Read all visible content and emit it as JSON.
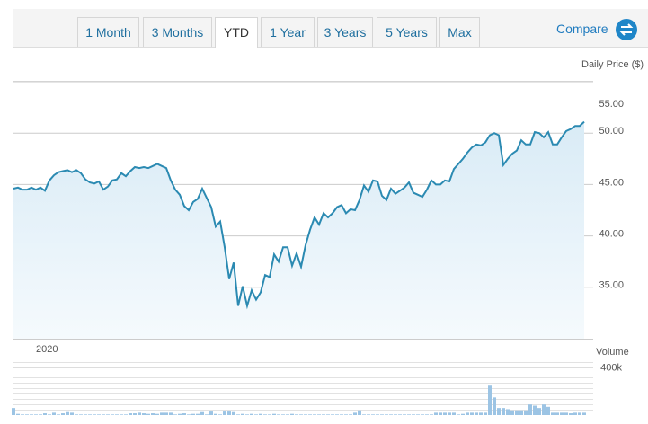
{
  "tabs": [
    "1 Month",
    "3 Months",
    "YTD",
    "1 Year",
    "3 Years",
    "5 Years",
    "Max"
  ],
  "active_tab": 2,
  "compare": "Compare",
  "chart_data": [
    {
      "type": "area",
      "y_label": "Daily Price ($)",
      "x_label": "2020",
      "color": "#2b8ab2",
      "ylim": [
        30,
        55
      ],
      "yticks": [
        {
          "value": 35,
          "label": "35.00"
        },
        {
          "value": 40,
          "label": "40.00"
        },
        {
          "value": 45,
          "label": "45.00"
        },
        {
          "value": 50,
          "label": "50.00"
        },
        {
          "value": 55,
          "label": "55.00"
        }
      ],
      "grid": true,
      "values": [
        44.6,
        44.7,
        44.5,
        44.5,
        44.7,
        44.5,
        44.7,
        44.4,
        45.4,
        45.9,
        46.2,
        46.3,
        46.4,
        46.2,
        46.4,
        46.1,
        45.5,
        45.2,
        45.1,
        45.3,
        44.5,
        44.8,
        45.4,
        45.5,
        46.1,
        45.8,
        46.3,
        46.7,
        46.6,
        46.7,
        46.6,
        46.8,
        47.0,
        46.8,
        46.6,
        45.4,
        44.5,
        44.0,
        42.9,
        42.5,
        43.3,
        43.6,
        44.6,
        43.7,
        42.8,
        40.9,
        41.4,
        38.9,
        35.8,
        37.4,
        33.2,
        35.1,
        33.2,
        34.7,
        33.8,
        34.5,
        36.2,
        36.0,
        38.2,
        37.5,
        38.9,
        38.9,
        37.1,
        38.3,
        37.0,
        39.1,
        40.6,
        41.8,
        41.1,
        42.2,
        41.8,
        42.2,
        42.8,
        43.0,
        42.2,
        42.6,
        42.5,
        43.5,
        44.9,
        44.3,
        45.4,
        45.3,
        43.9,
        43.5,
        44.6,
        44.1,
        44.4,
        44.7,
        45.2,
        44.2,
        44.0,
        43.8,
        44.5,
        45.4,
        45.0,
        45.0,
        45.4,
        45.3,
        46.5,
        47.0,
        47.5,
        48.1,
        48.6,
        48.9,
        48.8,
        49.1,
        49.8,
        50.0,
        49.8,
        46.9,
        47.5,
        48.0,
        48.3,
        49.3,
        48.9,
        48.9,
        50.1,
        50.0,
        49.6,
        50.1,
        48.9,
        48.9,
        49.6,
        50.2,
        50.4,
        50.7,
        50.7,
        51.1
      ]
    },
    {
      "type": "bar",
      "y_label": "Volume",
      "color": "#9cc4e4",
      "ylim": [
        0,
        450000
      ],
      "yticks": [
        {
          "value": 400000,
          "label": "400k"
        }
      ],
      "values": [
        60000,
        10000,
        5000,
        5000,
        5000,
        5000,
        5000,
        15000,
        5000,
        20000,
        5000,
        15000,
        25000,
        20000,
        5000,
        5000,
        5000,
        5000,
        5000,
        5000,
        5000,
        5000,
        5000,
        5000,
        5000,
        5000,
        15000,
        15000,
        20000,
        15000,
        10000,
        15000,
        10000,
        20000,
        20000,
        20000,
        5000,
        10000,
        15000,
        5000,
        10000,
        10000,
        25000,
        5000,
        30000,
        10000,
        5000,
        30000,
        30000,
        25000,
        5000,
        10000,
        5000,
        10000,
        5000,
        10000,
        5000,
        5000,
        10000,
        5000,
        5000,
        5000,
        10000,
        5000,
        5000,
        5000,
        5000,
        5000,
        5000,
        5000,
        5000,
        5000,
        5000,
        5000,
        5000,
        5000,
        20000,
        40000,
        5000,
        5000,
        5000,
        5000,
        5000,
        5000,
        5000,
        5000,
        5000,
        5000,
        5000,
        5000,
        5000,
        5000,
        5000,
        5000,
        20000,
        20000,
        20000,
        20000,
        20000,
        5000,
        10000,
        20000,
        20000,
        20000,
        20000,
        20000,
        250000,
        150000,
        60000,
        60000,
        50000,
        40000,
        40000,
        40000,
        40000,
        90000,
        80000,
        60000,
        90000,
        70000,
        20000,
        20000,
        20000,
        20000,
        15000,
        20000,
        20000,
        20000
      ]
    }
  ]
}
